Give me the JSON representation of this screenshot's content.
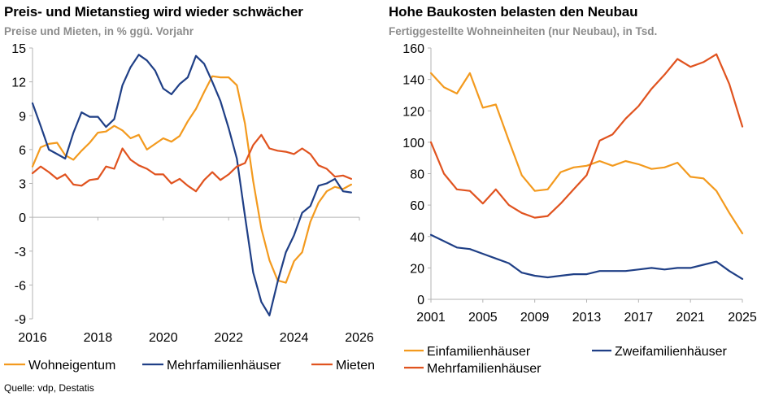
{
  "colors": {
    "orange": "#F39A1E",
    "navy": "#1F3F86",
    "red": "#E0531F",
    "axis": "#b3b3b3"
  },
  "source": "Quelle: vdp, Destatis",
  "chart_data": [
    {
      "type": "line",
      "title": "Preis- und Mietanstieg wird wieder schwächer",
      "subtitle": "Preise und Mieten, in % ggü. Vorjahr",
      "ylim": [
        -9,
        15
      ],
      "yticks": [
        "15",
        "12",
        "9",
        "6",
        "3",
        "0",
        "-3",
        "-6",
        "-9"
      ],
      "xlim": [
        2016,
        2026
      ],
      "xticks": [
        "2016",
        "2018",
        "2020",
        "2022",
        "2024",
        "2026"
      ],
      "grid": false,
      "legend": "bottom",
      "series": [
        {
          "name": "Wohneigentum",
          "color": "#F39A1E",
          "x": [
            2016,
            2016.25,
            2016.5,
            2016.75,
            2017,
            2017.25,
            2017.5,
            2017.75,
            2018,
            2018.25,
            2018.5,
            2018.75,
            2019,
            2019.25,
            2019.5,
            2019.75,
            2020,
            2020.25,
            2020.5,
            2020.75,
            2021,
            2021.25,
            2021.5,
            2021.75,
            2022,
            2022.25,
            2022.5,
            2022.75,
            2023,
            2023.25,
            2023.5,
            2023.75,
            2024,
            2024.25,
            2024.5,
            2024.75,
            2025,
            2025.25,
            2025.5,
            2025.75
          ],
          "y": [
            4.5,
            6.2,
            6.5,
            6.6,
            5.5,
            5.1,
            5.9,
            6.6,
            7.5,
            7.6,
            8.1,
            7.7,
            7.0,
            7.3,
            6.0,
            6.5,
            7.0,
            6.7,
            7.2,
            8.5,
            9.6,
            11.1,
            12.5,
            12.4,
            12.4,
            11.7,
            8.3,
            3.2,
            -1.0,
            -3.8,
            -5.6,
            -5.8,
            -3.9,
            -3.1,
            -0.4,
            1.3,
            2.3,
            2.7,
            2.5,
            2.9
          ]
        },
        {
          "name": "Mehrfamilienhäuser",
          "color": "#1F3F86",
          "x": [
            2016,
            2016.25,
            2016.5,
            2016.75,
            2017,
            2017.25,
            2017.5,
            2017.75,
            2018,
            2018.25,
            2018.5,
            2018.75,
            2019,
            2019.25,
            2019.5,
            2019.75,
            2020,
            2020.25,
            2020.5,
            2020.75,
            2021,
            2021.25,
            2021.5,
            2021.75,
            2022,
            2022.25,
            2022.5,
            2022.75,
            2023,
            2023.25,
            2023.5,
            2023.75,
            2024,
            2024.25,
            2024.5,
            2024.75,
            2025,
            2025.25,
            2025.5,
            2025.75
          ],
          "y": [
            10.1,
            8.1,
            6.0,
            5.6,
            5.2,
            7.5,
            9.3,
            8.9,
            8.9,
            8.0,
            8.7,
            11.7,
            13.3,
            14.4,
            13.9,
            13.0,
            11.4,
            10.9,
            11.8,
            12.4,
            14.3,
            13.6,
            12.0,
            10.3,
            7.9,
            5.2,
            0.1,
            -4.9,
            -7.5,
            -8.7,
            -5.7,
            -3.1,
            -1.6,
            0.4,
            1.0,
            2.8,
            3.0,
            3.4,
            2.3,
            2.2
          ]
        },
        {
          "name": "Mieten",
          "color": "#E0531F",
          "x": [
            2016,
            2016.25,
            2016.5,
            2016.75,
            2017,
            2017.25,
            2017.5,
            2017.75,
            2018,
            2018.25,
            2018.5,
            2018.75,
            2019,
            2019.25,
            2019.5,
            2019.75,
            2020,
            2020.25,
            2020.5,
            2020.75,
            2021,
            2021.25,
            2021.5,
            2021.75,
            2022,
            2022.25,
            2022.5,
            2022.75,
            2023,
            2023.25,
            2023.5,
            2023.75,
            2024,
            2024.25,
            2024.5,
            2024.75,
            2025,
            2025.25,
            2025.5,
            2025.75
          ],
          "y": [
            3.9,
            4.5,
            4.0,
            3.4,
            3.8,
            2.9,
            2.8,
            3.3,
            3.4,
            4.5,
            4.3,
            6.1,
            5.1,
            4.6,
            4.3,
            3.8,
            3.8,
            3.0,
            3.4,
            2.8,
            2.3,
            3.3,
            4.0,
            3.3,
            3.8,
            4.5,
            4.8,
            6.4,
            7.3,
            6.1,
            5.9,
            5.8,
            5.6,
            6.1,
            5.6,
            4.6,
            4.3,
            3.6,
            3.7,
            3.4
          ]
        }
      ]
    },
    {
      "type": "line",
      "title": "Hohe Baukosten belasten den Neubau",
      "subtitle": "Fertiggestellte Wohneinheiten (nur Neubau), in Tsd.",
      "ylim": [
        0,
        160
      ],
      "yticks": [
        "160",
        "140",
        "120",
        "100",
        "80",
        "60",
        "40",
        "20",
        "0"
      ],
      "xlim": [
        2001,
        2025
      ],
      "xticks": [
        "2001",
        "2005",
        "2009",
        "2013",
        "2017",
        "2021",
        "2025"
      ],
      "grid": false,
      "legend": "bottom",
      "series": [
        {
          "name": "Einfamilienhäuser",
          "color": "#F39A1E",
          "x": [
            2001,
            2002,
            2003,
            2004,
            2005,
            2006,
            2007,
            2008,
            2009,
            2010,
            2011,
            2012,
            2013,
            2014,
            2015,
            2016,
            2017,
            2018,
            2019,
            2020,
            2021,
            2022,
            2023,
            2024,
            2025
          ],
          "y": [
            144,
            135,
            131,
            144,
            122,
            124,
            101,
            79,
            69,
            70,
            81,
            84,
            85,
            88,
            85,
            88,
            86,
            83,
            84,
            87,
            78,
            77,
            69,
            55,
            42
          ]
        },
        {
          "name": "Zweifamilienhäuser",
          "color": "#1F3F86",
          "x": [
            2001,
            2002,
            2003,
            2004,
            2005,
            2006,
            2007,
            2008,
            2009,
            2010,
            2011,
            2012,
            2013,
            2014,
            2015,
            2016,
            2017,
            2018,
            2019,
            2020,
            2021,
            2022,
            2023,
            2024,
            2025
          ],
          "y": [
            41,
            37,
            33,
            32,
            29,
            26,
            23,
            17,
            15,
            14,
            15,
            16,
            16,
            18,
            18,
            18,
            19,
            20,
            19,
            20,
            20,
            22,
            24,
            18,
            13
          ]
        },
        {
          "name": "Mehrfamilienhäuser",
          "color": "#E0531F",
          "x": [
            2001,
            2002,
            2003,
            2004,
            2005,
            2006,
            2007,
            2008,
            2009,
            2010,
            2011,
            2012,
            2013,
            2014,
            2015,
            2016,
            2017,
            2018,
            2019,
            2020,
            2021,
            2022,
            2023,
            2024,
            2025
          ],
          "y": [
            100,
            80,
            70,
            69,
            61,
            70,
            60,
            55,
            52,
            53,
            61,
            70,
            79,
            101,
            105,
            115,
            123,
            134,
            143,
            153,
            148,
            151,
            156,
            137,
            110
          ]
        }
      ]
    }
  ]
}
